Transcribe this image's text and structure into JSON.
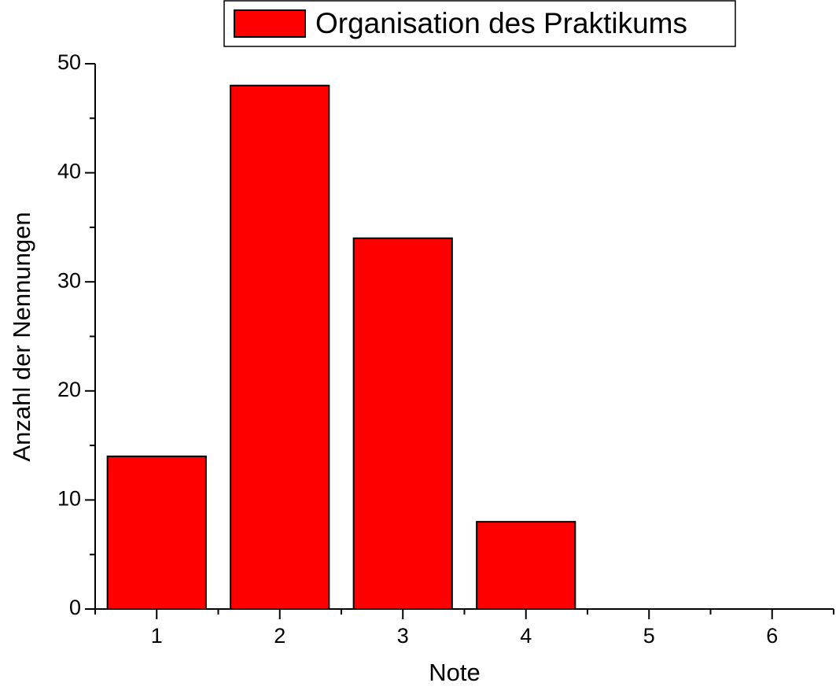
{
  "chart_data": {
    "type": "bar",
    "x": [
      1,
      2,
      3,
      4,
      5,
      6
    ],
    "series": [
      {
        "name": "Organisation des Praktikums",
        "color": "#ff0000",
        "values": [
          14,
          48,
          34,
          8,
          0,
          0
        ]
      }
    ],
    "xlabel": "Note",
    "ylabel": "Anzahl der Nennungen",
    "xlim": [
      0.5,
      6.5
    ],
    "xticks": [
      1,
      2,
      3,
      4,
      5,
      6
    ],
    "ylim": [
      0,
      50
    ],
    "yticks": [
      0,
      10,
      20,
      30,
      40,
      50
    ],
    "legend": "top",
    "grid": false
  }
}
